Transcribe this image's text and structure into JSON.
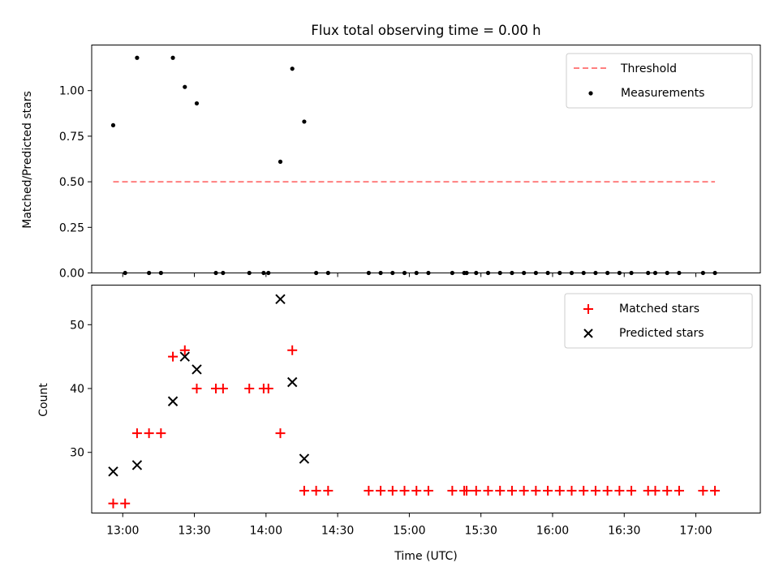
{
  "chart_data": [
    {
      "type": "scatter",
      "title": "Flux total observing time = 0.00 h",
      "xlabel": "",
      "ylabel": "Matched/Predicted stars",
      "xlim": [
        "12:47",
        "17:27"
      ],
      "ylim": [
        0,
        1.25
      ],
      "y_ticks": [
        "0.00",
        "0.25",
        "0.50",
        "0.75",
        "1.00"
      ],
      "threshold": {
        "name": "Threshold",
        "value": 0.5,
        "x_start": "12:56",
        "x_end": "17:08",
        "color": "#ff7f7f"
      },
      "series": [
        {
          "name": "Measurements",
          "marker": "dot",
          "color": "#000000",
          "points": [
            {
              "t": "12:56",
              "v": 0.81
            },
            {
              "t": "13:01",
              "v": 0.0
            },
            {
              "t": "13:06",
              "v": 1.18
            },
            {
              "t": "13:11",
              "v": 0.0
            },
            {
              "t": "13:16",
              "v": 0.0
            },
            {
              "t": "13:21",
              "v": 1.18
            },
            {
              "t": "13:26",
              "v": 1.02
            },
            {
              "t": "13:31",
              "v": 0.93
            },
            {
              "t": "13:39",
              "v": 0.0
            },
            {
              "t": "13:42",
              "v": 0.0
            },
            {
              "t": "13:53",
              "v": 0.0
            },
            {
              "t": "13:59",
              "v": 0.0
            },
            {
              "t": "14:01",
              "v": 0.0
            },
            {
              "t": "14:06",
              "v": 0.61
            },
            {
              "t": "14:11",
              "v": 1.12
            },
            {
              "t": "14:16",
              "v": 0.83
            },
            {
              "t": "14:21",
              "v": 0.0
            },
            {
              "t": "14:26",
              "v": 0.0
            },
            {
              "t": "14:43",
              "v": 0.0
            },
            {
              "t": "14:48",
              "v": 0.0
            },
            {
              "t": "14:53",
              "v": 0.0
            },
            {
              "t": "14:58",
              "v": 0.0
            },
            {
              "t": "15:03",
              "v": 0.0
            },
            {
              "t": "15:08",
              "v": 0.0
            },
            {
              "t": "15:18",
              "v": 0.0
            },
            {
              "t": "15:23",
              "v": 0.0
            },
            {
              "t": "15:24",
              "v": 0.0
            },
            {
              "t": "15:28",
              "v": 0.0
            },
            {
              "t": "15:33",
              "v": 0.0
            },
            {
              "t": "15:38",
              "v": 0.0
            },
            {
              "t": "15:43",
              "v": 0.0
            },
            {
              "t": "15:48",
              "v": 0.0
            },
            {
              "t": "15:53",
              "v": 0.0
            },
            {
              "t": "15:58",
              "v": 0.0
            },
            {
              "t": "16:03",
              "v": 0.0
            },
            {
              "t": "16:08",
              "v": 0.0
            },
            {
              "t": "16:13",
              "v": 0.0
            },
            {
              "t": "16:18",
              "v": 0.0
            },
            {
              "t": "16:23",
              "v": 0.0
            },
            {
              "t": "16:28",
              "v": 0.0
            },
            {
              "t": "16:33",
              "v": 0.0
            },
            {
              "t": "16:40",
              "v": 0.0
            },
            {
              "t": "16:43",
              "v": 0.0
            },
            {
              "t": "16:48",
              "v": 0.0
            },
            {
              "t": "16:53",
              "v": 0.0
            },
            {
              "t": "17:03",
              "v": 0.0
            },
            {
              "t": "17:08",
              "v": 0.0
            }
          ]
        }
      ],
      "legend": {
        "position": "top-right",
        "entries": [
          "Threshold",
          "Measurements"
        ]
      }
    },
    {
      "type": "scatter",
      "title": "",
      "xlabel": "Time (UTC)",
      "ylabel": "Count",
      "xlim": [
        "12:47",
        "17:27"
      ],
      "ylim": [
        20.5,
        56.2
      ],
      "x_ticks": [
        "13:00",
        "13:30",
        "14:00",
        "14:30",
        "15:00",
        "15:30",
        "16:00",
        "16:30",
        "17:00"
      ],
      "y_ticks": [
        "30",
        "40",
        "50"
      ],
      "series": [
        {
          "name": "Matched stars",
          "marker": "plus",
          "color": "#ff0000",
          "points": [
            {
              "t": "12:56",
              "v": 22
            },
            {
              "t": "13:01",
              "v": 22
            },
            {
              "t": "13:06",
              "v": 33
            },
            {
              "t": "13:11",
              "v": 33
            },
            {
              "t": "13:16",
              "v": 33
            },
            {
              "t": "13:21",
              "v": 45
            },
            {
              "t": "13:26",
              "v": 46
            },
            {
              "t": "13:31",
              "v": 40
            },
            {
              "t": "13:39",
              "v": 40
            },
            {
              "t": "13:42",
              "v": 40
            },
            {
              "t": "13:53",
              "v": 40
            },
            {
              "t": "13:59",
              "v": 40
            },
            {
              "t": "14:01",
              "v": 40
            },
            {
              "t": "14:06",
              "v": 33
            },
            {
              "t": "14:11",
              "v": 46
            },
            {
              "t": "14:16",
              "v": 24
            },
            {
              "t": "14:21",
              "v": 24
            },
            {
              "t": "14:26",
              "v": 24
            },
            {
              "t": "14:43",
              "v": 24
            },
            {
              "t": "14:48",
              "v": 24
            },
            {
              "t": "14:53",
              "v": 24
            },
            {
              "t": "14:58",
              "v": 24
            },
            {
              "t": "15:03",
              "v": 24
            },
            {
              "t": "15:08",
              "v": 24
            },
            {
              "t": "15:18",
              "v": 24
            },
            {
              "t": "15:23",
              "v": 24
            },
            {
              "t": "15:24",
              "v": 24
            },
            {
              "t": "15:28",
              "v": 24
            },
            {
              "t": "15:33",
              "v": 24
            },
            {
              "t": "15:38",
              "v": 24
            },
            {
              "t": "15:43",
              "v": 24
            },
            {
              "t": "15:48",
              "v": 24
            },
            {
              "t": "15:53",
              "v": 24
            },
            {
              "t": "15:58",
              "v": 24
            },
            {
              "t": "16:03",
              "v": 24
            },
            {
              "t": "16:08",
              "v": 24
            },
            {
              "t": "16:13",
              "v": 24
            },
            {
              "t": "16:18",
              "v": 24
            },
            {
              "t": "16:23",
              "v": 24
            },
            {
              "t": "16:28",
              "v": 24
            },
            {
              "t": "16:33",
              "v": 24
            },
            {
              "t": "16:40",
              "v": 24
            },
            {
              "t": "16:43",
              "v": 24
            },
            {
              "t": "16:48",
              "v": 24
            },
            {
              "t": "16:53",
              "v": 24
            },
            {
              "t": "17:03",
              "v": 24
            },
            {
              "t": "17:08",
              "v": 24
            }
          ]
        },
        {
          "name": "Predicted stars",
          "marker": "x",
          "color": "#000000",
          "points": [
            {
              "t": "12:56",
              "v": 27
            },
            {
              "t": "13:06",
              "v": 28
            },
            {
              "t": "13:21",
              "v": 38
            },
            {
              "t": "13:26",
              "v": 45
            },
            {
              "t": "13:31",
              "v": 43
            },
            {
              "t": "14:06",
              "v": 54
            },
            {
              "t": "14:11",
              "v": 41
            },
            {
              "t": "14:16",
              "v": 29
            }
          ]
        }
      ],
      "legend": {
        "position": "top-right",
        "entries": [
          "Matched stars",
          "Predicted stars"
        ]
      }
    }
  ]
}
